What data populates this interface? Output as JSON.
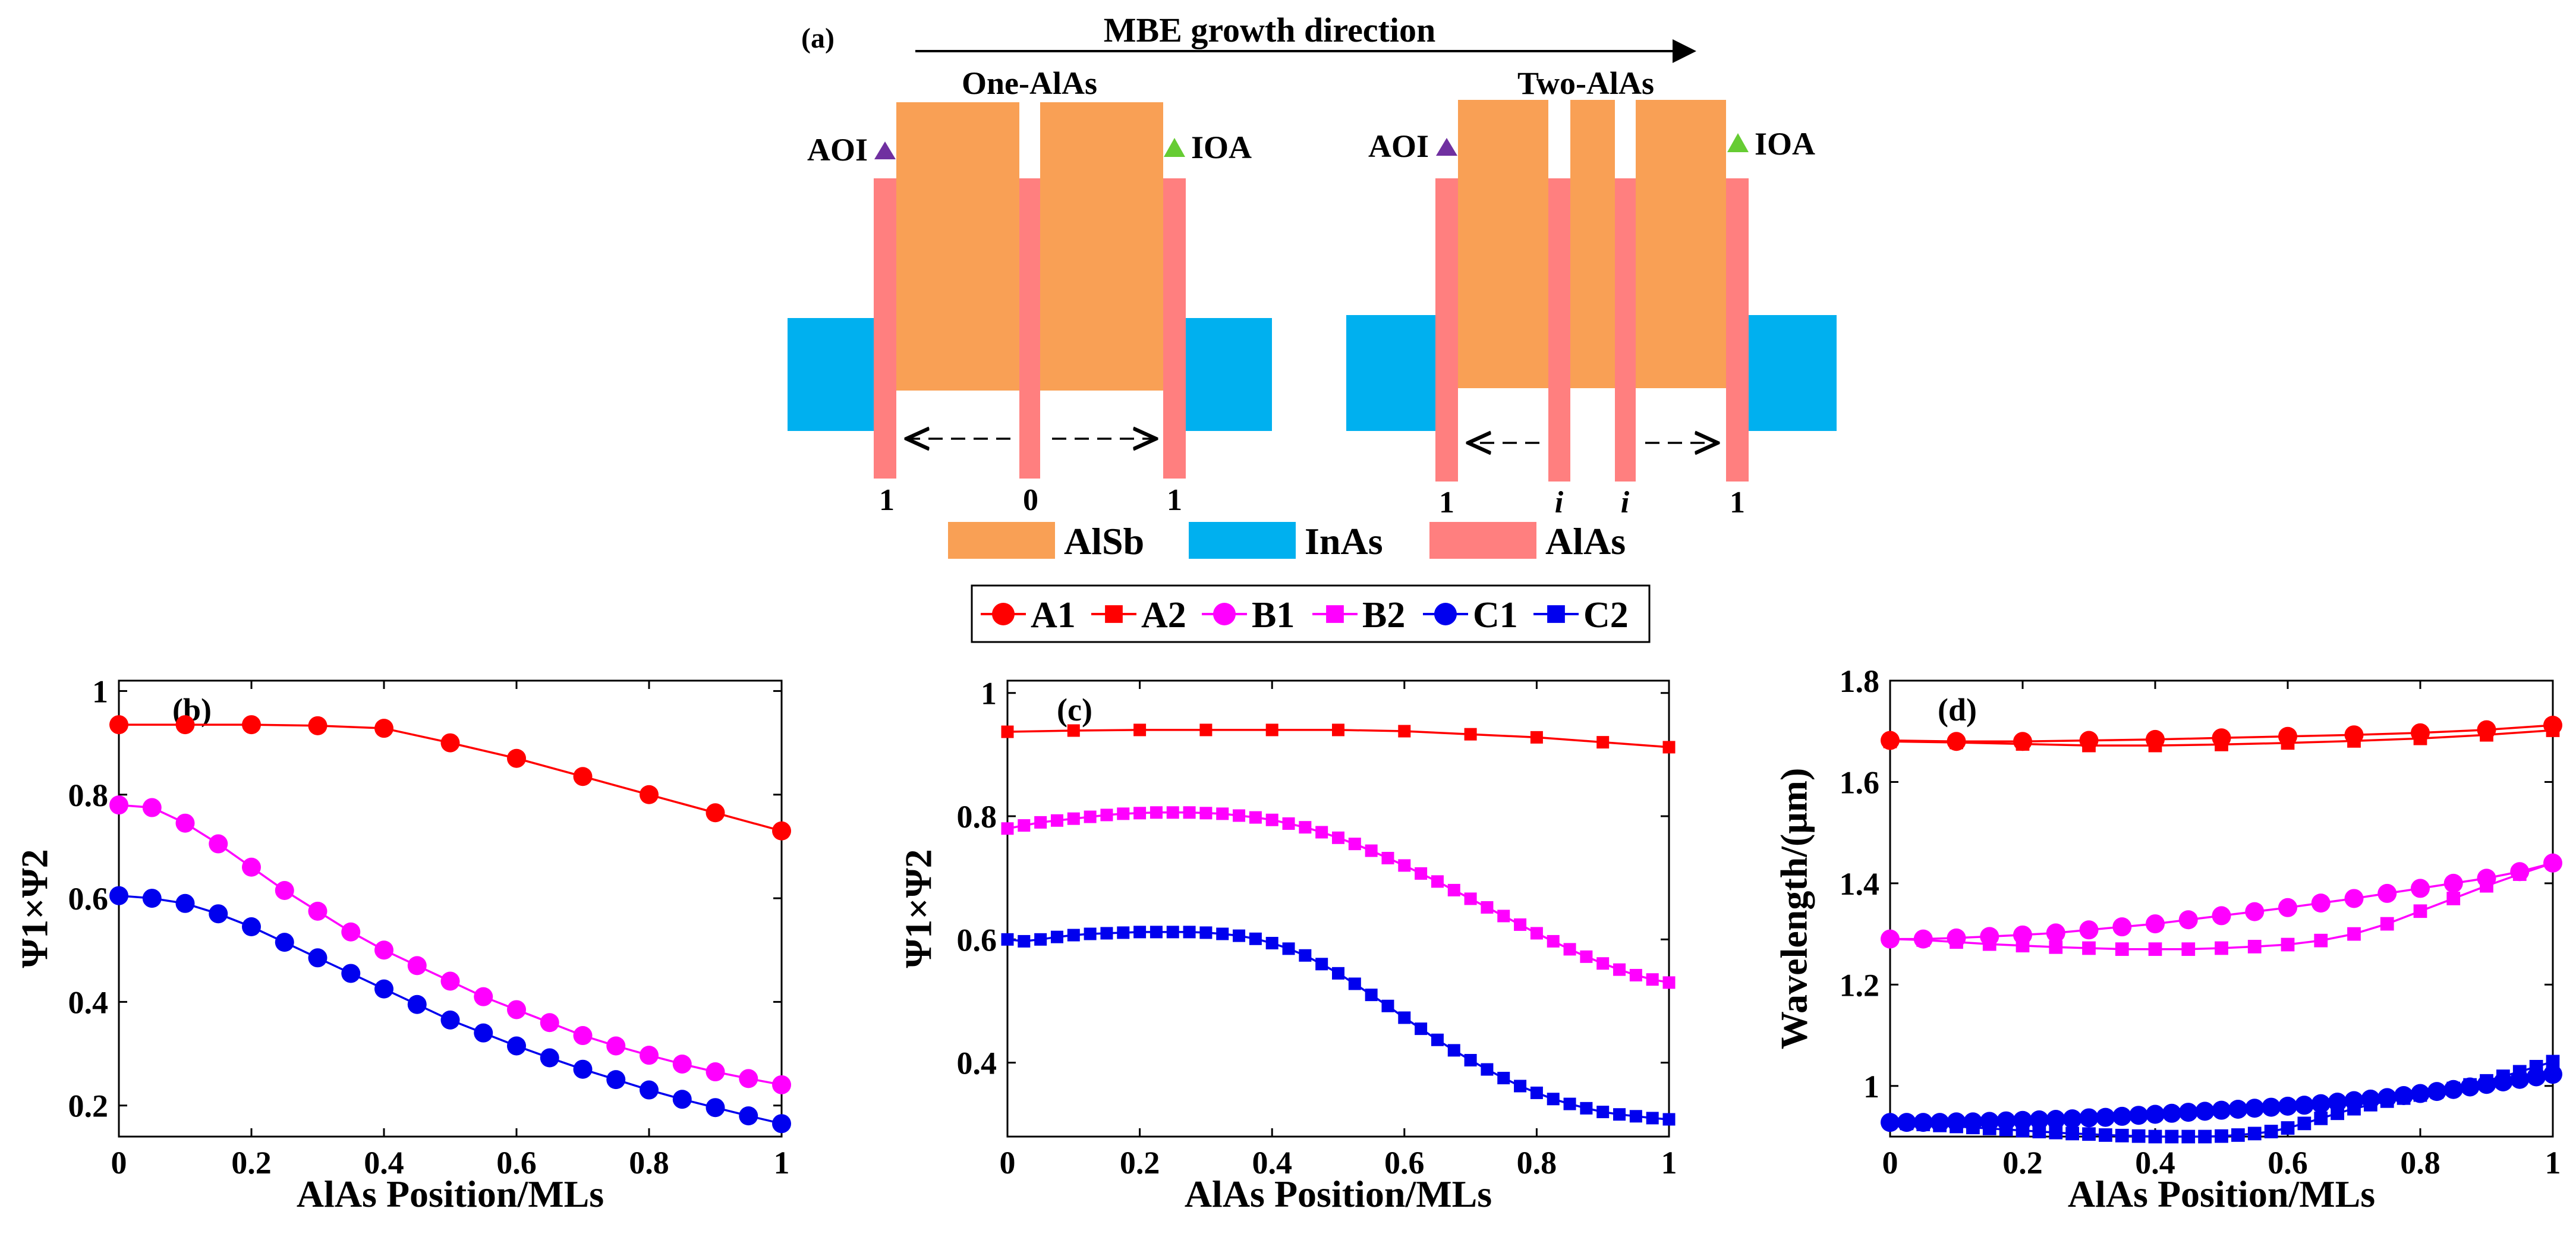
{
  "schematic": {
    "panel_label": "(a)",
    "growth_direction": "MBE growth direction",
    "structure_left_title": "One-AlAs",
    "structure_right_title": "Two-AlAs",
    "interface_left": "AOI",
    "interface_right": "IOA",
    "positions_left": [
      "1",
      "0",
      "1"
    ],
    "positions_right": [
      "1",
      "i",
      "i",
      "1"
    ],
    "legend": [
      {
        "label": "AlSb",
        "color": "#F9A055"
      },
      {
        "label": "InAs",
        "color": "#00B0EF"
      },
      {
        "label": "AlAs",
        "color": "#FF7F7F"
      }
    ],
    "triangle_left_color": "#7030A0",
    "triangle_right_color": "#66CC33"
  },
  "legend": [
    {
      "label": "A1",
      "marker": "circle",
      "color": "#FF0000"
    },
    {
      "label": "A2",
      "marker": "square",
      "color": "#FF0000"
    },
    {
      "label": "B1",
      "marker": "circle",
      "color": "#FF00FF"
    },
    {
      "label": "B2",
      "marker": "square",
      "color": "#FF00FF"
    },
    {
      "label": "C1",
      "marker": "circle",
      "color": "#0000EE"
    },
    {
      "label": "C2",
      "marker": "square",
      "color": "#0000EE"
    }
  ],
  "chart_data": [
    {
      "type": "line",
      "panel_label": "(b)",
      "xlabel": "AlAs Position/MLs",
      "ylabel": "Ψ1×Ψ2",
      "xlim": [
        0,
        1
      ],
      "ylim": [
        0.14,
        1.02
      ],
      "xticks": [
        0,
        0.2,
        0.4,
        0.6,
        0.8,
        1
      ],
      "xtick_labels": [
        "0",
        "0.2",
        "0.4",
        "0.6",
        "0.8",
        "1"
      ],
      "yticks": [
        0.2,
        0.4,
        0.6,
        0.8,
        1
      ],
      "ytick_labels": [
        "0.2",
        "0.4",
        "0.6",
        "0.8",
        "1"
      ],
      "series": [
        {
          "name": "A1",
          "marker": "circle",
          "color": "#FF0000",
          "x": [
            0,
            0.1,
            0.2,
            0.3,
            0.4,
            0.5,
            0.6,
            0.7,
            0.8,
            0.9,
            1.0
          ],
          "y": [
            0.935,
            0.935,
            0.935,
            0.933,
            0.928,
            0.9,
            0.87,
            0.835,
            0.8,
            0.765,
            0.73
          ]
        },
        {
          "name": "B1",
          "marker": "circle",
          "color": "#FF00FF",
          "x": [
            0,
            0.05,
            0.1,
            0.15,
            0.2,
            0.25,
            0.3,
            0.35,
            0.4,
            0.45,
            0.5,
            0.55,
            0.6,
            0.65,
            0.7,
            0.75,
            0.8,
            0.85,
            0.9,
            0.95,
            1.0
          ],
          "y": [
            0.78,
            0.775,
            0.745,
            0.705,
            0.66,
            0.615,
            0.575,
            0.535,
            0.5,
            0.47,
            0.44,
            0.41,
            0.385,
            0.36,
            0.335,
            0.315,
            0.297,
            0.28,
            0.265,
            0.252,
            0.24
          ]
        },
        {
          "name": "C1",
          "marker": "circle",
          "color": "#0000EE",
          "x": [
            0,
            0.05,
            0.1,
            0.15,
            0.2,
            0.25,
            0.3,
            0.35,
            0.4,
            0.45,
            0.5,
            0.55,
            0.6,
            0.65,
            0.7,
            0.75,
            0.8,
            0.85,
            0.9,
            0.95,
            1.0
          ],
          "y": [
            0.605,
            0.6,
            0.59,
            0.57,
            0.545,
            0.515,
            0.485,
            0.455,
            0.425,
            0.395,
            0.365,
            0.34,
            0.315,
            0.292,
            0.27,
            0.25,
            0.23,
            0.212,
            0.196,
            0.18,
            0.165
          ]
        }
      ]
    },
    {
      "type": "line",
      "panel_label": "(c)",
      "xlabel": "AlAs Position/MLs",
      "ylabel": "Ψ1×Ψ2",
      "xlim": [
        0,
        1
      ],
      "ylim": [
        0.28,
        1.02
      ],
      "xticks": [
        0,
        0.2,
        0.4,
        0.6,
        0.8,
        1
      ],
      "xtick_labels": [
        "0",
        "0.2",
        "0.4",
        "0.6",
        "0.8",
        "1"
      ],
      "yticks": [
        0.4,
        0.6,
        0.8,
        1
      ],
      "ytick_labels": [
        "0.4",
        "0.6",
        "0.8",
        "1"
      ],
      "series": [
        {
          "name": "A2",
          "marker": "square",
          "color": "#FF0000",
          "x": [
            0,
            0.1,
            0.2,
            0.3,
            0.4,
            0.5,
            0.6,
            0.7,
            0.8,
            0.9,
            1.0
          ],
          "y": [
            0.937,
            0.939,
            0.94,
            0.94,
            0.94,
            0.94,
            0.938,
            0.933,
            0.928,
            0.92,
            0.912
          ]
        },
        {
          "name": "B2",
          "marker": "square",
          "color": "#FF00FF",
          "x": [
            0,
            0.025,
            0.05,
            0.075,
            0.1,
            0.125,
            0.15,
            0.175,
            0.2,
            0.225,
            0.25,
            0.275,
            0.3,
            0.325,
            0.35,
            0.375,
            0.4,
            0.425,
            0.45,
            0.475,
            0.5,
            0.525,
            0.55,
            0.575,
            0.6,
            0.625,
            0.65,
            0.675,
            0.7,
            0.725,
            0.75,
            0.775,
            0.8,
            0.825,
            0.85,
            0.875,
            0.9,
            0.925,
            0.95,
            0.975,
            1.0
          ],
          "y": [
            0.78,
            0.785,
            0.79,
            0.793,
            0.796,
            0.799,
            0.802,
            0.804,
            0.805,
            0.806,
            0.806,
            0.806,
            0.805,
            0.804,
            0.801,
            0.798,
            0.794,
            0.788,
            0.782,
            0.774,
            0.765,
            0.755,
            0.744,
            0.732,
            0.72,
            0.707,
            0.694,
            0.68,
            0.666,
            0.652,
            0.638,
            0.624,
            0.61,
            0.597,
            0.584,
            0.572,
            0.561,
            0.551,
            0.542,
            0.535,
            0.53
          ]
        },
        {
          "name": "C2",
          "marker": "square",
          "color": "#0000EE",
          "x": [
            0,
            0.025,
            0.05,
            0.075,
            0.1,
            0.125,
            0.15,
            0.175,
            0.2,
            0.225,
            0.25,
            0.275,
            0.3,
            0.325,
            0.35,
            0.375,
            0.4,
            0.425,
            0.45,
            0.475,
            0.5,
            0.525,
            0.55,
            0.575,
            0.6,
            0.625,
            0.65,
            0.675,
            0.7,
            0.725,
            0.75,
            0.775,
            0.8,
            0.825,
            0.85,
            0.875,
            0.9,
            0.925,
            0.95,
            0.975,
            1.0
          ],
          "y": [
            0.6,
            0.597,
            0.6,
            0.604,
            0.607,
            0.609,
            0.61,
            0.611,
            0.612,
            0.612,
            0.612,
            0.612,
            0.611,
            0.609,
            0.606,
            0.601,
            0.594,
            0.585,
            0.574,
            0.56,
            0.545,
            0.528,
            0.51,
            0.492,
            0.473,
            0.455,
            0.437,
            0.42,
            0.404,
            0.389,
            0.375,
            0.362,
            0.351,
            0.341,
            0.333,
            0.326,
            0.32,
            0.316,
            0.313,
            0.31,
            0.308
          ]
        }
      ]
    },
    {
      "type": "line",
      "panel_label": "(d)",
      "xlabel": "AlAs Position/MLs",
      "ylabel": "Wavelength/(μm)",
      "xlim": [
        0,
        1
      ],
      "ylim": [
        0.9,
        1.8
      ],
      "xticks": [
        0,
        0.2,
        0.4,
        0.6,
        0.8,
        1
      ],
      "xtick_labels": [
        "0",
        "0.2",
        "0.4",
        "0.6",
        "0.8",
        "1"
      ],
      "yticks": [
        1,
        1.2,
        1.4,
        1.6,
        1.8
      ],
      "ytick_labels": [
        "1",
        "1.2",
        "1.4",
        "1.6",
        "1.8"
      ],
      "series": [
        {
          "name": "A1",
          "marker": "circle",
          "color": "#FF0000",
          "x": [
            0,
            0.1,
            0.2,
            0.3,
            0.4,
            0.5,
            0.6,
            0.7,
            0.8,
            0.9,
            1.0
          ],
          "y": [
            1.682,
            1.68,
            1.68,
            1.682,
            1.684,
            1.687,
            1.69,
            1.693,
            1.697,
            1.703,
            1.712
          ]
        },
        {
          "name": "A2",
          "marker": "square",
          "color": "#FF0000",
          "x": [
            0,
            0.1,
            0.2,
            0.3,
            0.4,
            0.5,
            0.6,
            0.7,
            0.8,
            0.9,
            1.0
          ],
          "y": [
            1.68,
            1.678,
            1.675,
            1.672,
            1.672,
            1.674,
            1.677,
            1.681,
            1.686,
            1.693,
            1.702
          ]
        },
        {
          "name": "B1",
          "marker": "circle",
          "color": "#FF00FF",
          "x": [
            0,
            0.05,
            0.1,
            0.15,
            0.2,
            0.25,
            0.3,
            0.35,
            0.4,
            0.45,
            0.5,
            0.55,
            0.6,
            0.65,
            0.7,
            0.75,
            0.8,
            0.85,
            0.9,
            0.95,
            1.0
          ],
          "y": [
            1.29,
            1.29,
            1.292,
            1.295,
            1.298,
            1.302,
            1.308,
            1.314,
            1.32,
            1.328,
            1.336,
            1.344,
            1.352,
            1.361,
            1.37,
            1.38,
            1.39,
            1.4,
            1.41,
            1.423,
            1.44
          ]
        },
        {
          "name": "B2",
          "marker": "square",
          "color": "#FF00FF",
          "x": [
            0,
            0.05,
            0.1,
            0.15,
            0.2,
            0.25,
            0.3,
            0.35,
            0.4,
            0.45,
            0.5,
            0.55,
            0.6,
            0.65,
            0.7,
            0.75,
            0.8,
            0.85,
            0.9,
            0.95,
            1.0
          ],
          "y": [
            1.29,
            1.288,
            1.284,
            1.28,
            1.277,
            1.274,
            1.272,
            1.27,
            1.27,
            1.27,
            1.272,
            1.275,
            1.279,
            1.287,
            1.3,
            1.32,
            1.345,
            1.37,
            1.395,
            1.418,
            1.44
          ]
        },
        {
          "name": "C1",
          "marker": "circle",
          "color": "#0000EE",
          "x": [
            0,
            0.025,
            0.05,
            0.075,
            0.1,
            0.125,
            0.15,
            0.175,
            0.2,
            0.225,
            0.25,
            0.275,
            0.3,
            0.325,
            0.35,
            0.375,
            0.4,
            0.425,
            0.45,
            0.475,
            0.5,
            0.525,
            0.55,
            0.575,
            0.6,
            0.625,
            0.65,
            0.675,
            0.7,
            0.725,
            0.75,
            0.775,
            0.8,
            0.825,
            0.85,
            0.875,
            0.9,
            0.925,
            0.95,
            0.975,
            1.0
          ],
          "y": [
            0.928,
            0.928,
            0.928,
            0.928,
            0.929,
            0.929,
            0.93,
            0.931,
            0.932,
            0.933,
            0.934,
            0.935,
            0.937,
            0.938,
            0.94,
            0.942,
            0.944,
            0.946,
            0.948,
            0.95,
            0.952,
            0.954,
            0.956,
            0.958,
            0.96,
            0.962,
            0.965,
            0.968,
            0.971,
            0.974,
            0.977,
            0.981,
            0.985,
            0.989,
            0.993,
            0.998,
            1.003,
            1.008,
            1.013,
            1.018,
            1.023
          ]
        },
        {
          "name": "C2",
          "marker": "square",
          "color": "#0000EE",
          "x": [
            0,
            0.025,
            0.05,
            0.075,
            0.1,
            0.125,
            0.15,
            0.175,
            0.2,
            0.225,
            0.25,
            0.275,
            0.3,
            0.325,
            0.35,
            0.375,
            0.4,
            0.425,
            0.45,
            0.475,
            0.5,
            0.525,
            0.55,
            0.575,
            0.6,
            0.625,
            0.65,
            0.675,
            0.7,
            0.725,
            0.75,
            0.775,
            0.8,
            0.825,
            0.85,
            0.875,
            0.9,
            0.925,
            0.95,
            0.975,
            1.0
          ],
          "y": [
            0.928,
            0.926,
            0.924,
            0.922,
            0.92,
            0.918,
            0.916,
            0.914,
            0.912,
            0.91,
            0.908,
            0.906,
            0.905,
            0.903,
            0.902,
            0.901,
            0.9,
            0.9,
            0.9,
            0.9,
            0.901,
            0.903,
            0.906,
            0.91,
            0.917,
            0.926,
            0.936,
            0.946,
            0.955,
            0.963,
            0.97,
            0.976,
            0.982,
            0.988,
            0.995,
            1.002,
            1.01,
            1.019,
            1.028,
            1.038,
            1.048
          ]
        }
      ]
    }
  ]
}
